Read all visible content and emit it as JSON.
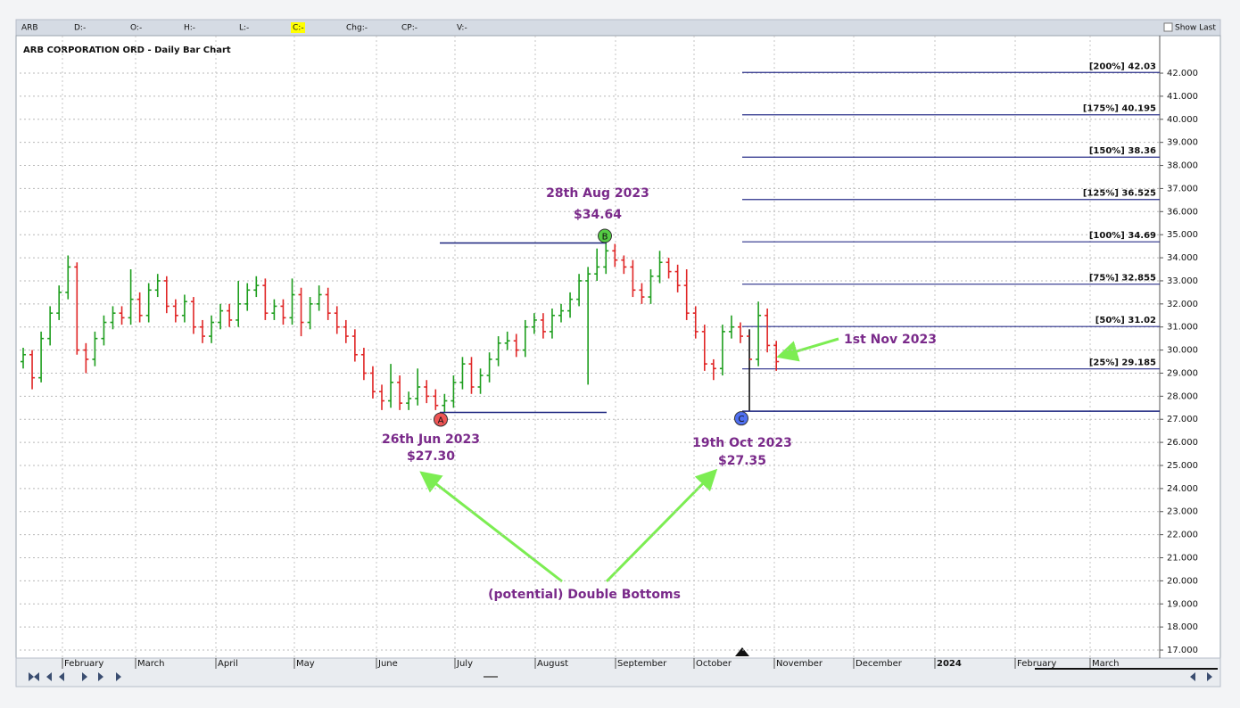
{
  "chart_data": {
    "type": "ohlc",
    "title": "ARB CORPORATION ORD - Daily Bar Chart",
    "toolbar": {
      "symbol": "ARB",
      "fields": [
        "D:-",
        "O:-",
        "H:-",
        "L:-",
        "C:-",
        "Chg:-",
        "CP:-",
        "V:-"
      ],
      "show_last": "Show Last"
    },
    "months": [
      "February",
      "March",
      "April",
      "May",
      "June",
      "July",
      "August",
      "September",
      "October",
      "November",
      "December",
      "2024",
      "February",
      "March"
    ],
    "up_color": "#1e9e1e",
    "down_color": "#e02626",
    "ylim": [
      16.8,
      43.4
    ],
    "yticks": [
      {
        "value": 17,
        "label": "17.000"
      },
      {
        "value": 18,
        "label": "18.000"
      },
      {
        "value": 19,
        "label": "19.000"
      },
      {
        "value": 20,
        "label": "20.000"
      },
      {
        "value": 21,
        "label": "21.000"
      },
      {
        "value": 22,
        "label": "22.000"
      },
      {
        "value": 23,
        "label": "23.000"
      },
      {
        "value": 24,
        "label": "24.000"
      },
      {
        "value": 25,
        "label": "25.000"
      },
      {
        "value": 26,
        "label": "26.000"
      },
      {
        "value": 27,
        "label": "27.000"
      },
      {
        "value": 28,
        "label": "28.000"
      },
      {
        "value": 29,
        "label": "29.000"
      },
      {
        "value": 30,
        "label": "30.000"
      },
      {
        "value": 31,
        "label": "31.000"
      },
      {
        "value": 32,
        "label": "32.000"
      },
      {
        "value": 33,
        "label": "33.000"
      },
      {
        "value": 34,
        "label": "34.000"
      },
      {
        "value": 35,
        "label": "35.000"
      },
      {
        "value": 36,
        "label": "36.000"
      },
      {
        "value": 37,
        "label": "37.000"
      },
      {
        "value": 38,
        "label": "38.000"
      },
      {
        "value": 39,
        "label": "39.000"
      },
      {
        "value": 40,
        "label": "40.000"
      },
      {
        "value": 41,
        "label": "41.000"
      },
      {
        "value": 42,
        "label": "42.000"
      }
    ],
    "grid": true,
    "bars": [
      [
        29.5,
        30.1,
        29.2,
        29.8
      ],
      [
        29.8,
        30.0,
        28.3,
        28.8
      ],
      [
        28.8,
        30.8,
        28.6,
        30.5
      ],
      [
        30.5,
        31.9,
        30.2,
        31.6
      ],
      [
        31.6,
        32.8,
        31.3,
        32.5
      ],
      [
        32.5,
        34.1,
        32.2,
        33.6
      ],
      [
        33.6,
        33.8,
        29.8,
        30.0
      ],
      [
        30.0,
        30.3,
        29.0,
        29.6
      ],
      [
        29.6,
        30.8,
        29.3,
        30.5
      ],
      [
        30.5,
        31.5,
        30.2,
        31.2
      ],
      [
        31.2,
        31.9,
        30.9,
        31.6
      ],
      [
        31.6,
        31.9,
        31.1,
        31.4
      ],
      [
        31.4,
        33.5,
        31.1,
        32.2
      ],
      [
        32.2,
        32.5,
        31.2,
        31.5
      ],
      [
        31.5,
        32.9,
        31.2,
        32.6
      ],
      [
        32.6,
        33.3,
        32.3,
        33.0
      ],
      [
        33.0,
        33.2,
        31.6,
        31.9
      ],
      [
        31.9,
        32.2,
        31.2,
        31.5
      ],
      [
        31.5,
        32.4,
        31.2,
        32.1
      ],
      [
        32.1,
        32.3,
        30.7,
        31.0
      ],
      [
        31.0,
        31.3,
        30.3,
        30.6
      ],
      [
        30.6,
        31.5,
        30.3,
        31.2
      ],
      [
        31.2,
        32.0,
        30.9,
        31.7
      ],
      [
        31.7,
        32.0,
        31.0,
        31.3
      ],
      [
        31.3,
        33.0,
        31.0,
        32.0
      ],
      [
        32.0,
        32.9,
        31.7,
        32.6
      ],
      [
        32.6,
        33.2,
        32.3,
        32.8
      ],
      [
        32.8,
        33.1,
        31.3,
        31.6
      ],
      [
        31.6,
        32.2,
        31.3,
        31.9
      ],
      [
        31.9,
        32.2,
        31.1,
        31.4
      ],
      [
        31.4,
        33.1,
        31.1,
        32.4
      ],
      [
        32.4,
        32.7,
        30.6,
        31.2
      ],
      [
        31.2,
        32.3,
        30.9,
        32.0
      ],
      [
        32.0,
        32.8,
        31.7,
        32.4
      ],
      [
        32.4,
        32.7,
        31.3,
        31.6
      ],
      [
        31.6,
        31.9,
        30.7,
        31.0
      ],
      [
        31.0,
        31.3,
        30.3,
        30.6
      ],
      [
        30.6,
        30.9,
        29.5,
        29.8
      ],
      [
        29.8,
        30.1,
        28.7,
        29.0
      ],
      [
        29.0,
        29.3,
        27.9,
        28.2
      ],
      [
        28.2,
        28.5,
        27.4,
        27.8
      ],
      [
        27.8,
        29.4,
        27.5,
        28.6
      ],
      [
        28.6,
        28.9,
        27.4,
        27.7
      ],
      [
        27.7,
        28.2,
        27.4,
        27.9
      ],
      [
        27.9,
        29.2,
        27.6,
        28.4
      ],
      [
        28.4,
        28.7,
        27.7,
        28.0
      ],
      [
        28.0,
        28.3,
        27.4,
        27.6
      ],
      [
        27.6,
        28.1,
        27.3,
        27.8
      ],
      [
        27.8,
        28.9,
        27.5,
        28.6
      ],
      [
        28.6,
        29.7,
        28.3,
        29.4
      ],
      [
        29.4,
        29.7,
        28.1,
        28.4
      ],
      [
        28.4,
        29.2,
        28.1,
        28.9
      ],
      [
        28.9,
        29.9,
        28.6,
        29.6
      ],
      [
        29.6,
        30.6,
        29.3,
        30.3
      ],
      [
        30.3,
        30.8,
        30.0,
        30.4
      ],
      [
        30.4,
        30.7,
        29.7,
        30.0
      ],
      [
        30.0,
        31.3,
        29.7,
        31.0
      ],
      [
        31.0,
        31.6,
        30.7,
        31.3
      ],
      [
        31.3,
        31.6,
        30.5,
        30.8
      ],
      [
        30.8,
        31.8,
        30.5,
        31.5
      ],
      [
        31.5,
        32.0,
        31.2,
        31.7
      ],
      [
        31.7,
        32.5,
        31.4,
        32.2
      ],
      [
        32.2,
        33.3,
        31.9,
        33.0
      ],
      [
        33.0,
        33.6,
        28.5,
        33.3
      ],
      [
        33.3,
        34.4,
        33.0,
        33.6
      ],
      [
        33.6,
        34.64,
        33.3,
        34.3
      ],
      [
        34.3,
        34.6,
        33.6,
        33.9
      ],
      [
        33.9,
        34.1,
        33.3,
        33.6
      ],
      [
        33.6,
        33.9,
        32.3,
        32.6
      ],
      [
        32.6,
        32.9,
        32.0,
        32.3
      ],
      [
        32.3,
        33.5,
        32.0,
        33.2
      ],
      [
        33.2,
        34.3,
        32.9,
        33.8
      ],
      [
        33.8,
        34.0,
        33.1,
        33.4
      ],
      [
        33.4,
        33.7,
        32.5,
        32.8
      ],
      [
        32.8,
        33.5,
        31.3,
        31.6
      ],
      [
        31.6,
        31.9,
        30.5,
        30.8
      ],
      [
        30.8,
        31.1,
        29.1,
        29.4
      ],
      [
        29.4,
        29.6,
        28.7,
        29.2
      ],
      [
        29.2,
        31.1,
        28.9,
        30.8
      ],
      [
        30.8,
        31.5,
        30.5,
        31.0
      ],
      [
        31.0,
        31.2,
        30.3,
        30.6
      ],
      [
        30.6,
        30.9,
        27.35,
        29.6
      ],
      [
        29.6,
        32.1,
        29.3,
        31.5
      ],
      [
        31.5,
        31.8,
        29.9,
        30.2
      ],
      [
        30.2,
        30.4,
        29.1,
        29.5
      ]
    ],
    "levels": [
      {
        "value": 42.03,
        "label": "[200%] 42.03"
      },
      {
        "value": 40.195,
        "label": "[175%] 40.195"
      },
      {
        "value": 38.36,
        "label": "[150%] 38.36"
      },
      {
        "value": 36.525,
        "label": "[125%] 36.525"
      },
      {
        "value": 34.69,
        "label": "[100%] 34.69"
      },
      {
        "value": 32.855,
        "label": "[75%] 32.855"
      },
      {
        "value": 31.02,
        "label": "[50%] 31.02"
      },
      {
        "value": 29.185,
        "label": "[25%] 29.185"
      }
    ],
    "points": [
      {
        "label": "A",
        "value": 27.3,
        "date": "26th Jun 2023",
        "price": "$27.30",
        "color": "#ee5555"
      },
      {
        "label": "B",
        "value": 34.64,
        "date": "28th Aug 2023",
        "price": "$34.64",
        "color": "#55cc44"
      },
      {
        "label": "C",
        "value": 27.35,
        "date": "19th Oct 2023",
        "price": "$27.35",
        "color": "#4f6ff0"
      }
    ],
    "annotations": [
      "1st Nov 2023",
      "(potential) Double Bottoms"
    ]
  }
}
